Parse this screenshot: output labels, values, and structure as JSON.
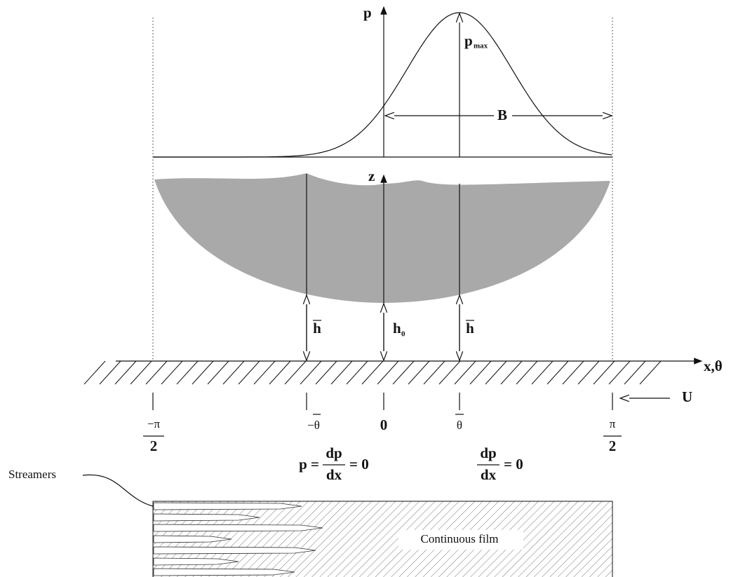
{
  "axes": {
    "pressure": "p",
    "height": "z",
    "horizontal": "x,θ"
  },
  "pressure_curve": {
    "peak_label": "p",
    "peak_subscript": "max",
    "width_label": "B"
  },
  "gaps": {
    "mean_left": "h",
    "center": "h",
    "center_subscript": "0",
    "mean_right": "h"
  },
  "velocity": "U",
  "positions": {
    "left_edge": {
      "numerator": "−π",
      "denominator": "2"
    },
    "minus_theta": "−θ",
    "zero": "0",
    "theta": "θ",
    "right_edge": {
      "numerator": "π",
      "denominator": "2"
    }
  },
  "conditions": {
    "left": {
      "lead": "p =",
      "numerator": "dp",
      "denominator": "dx",
      "tail": "= 0"
    },
    "right": {
      "numerator": "dp",
      "denominator": "dx",
      "tail": "= 0"
    }
  },
  "film": {
    "streamers": "Streamers",
    "continuous": "Continuous film"
  }
}
